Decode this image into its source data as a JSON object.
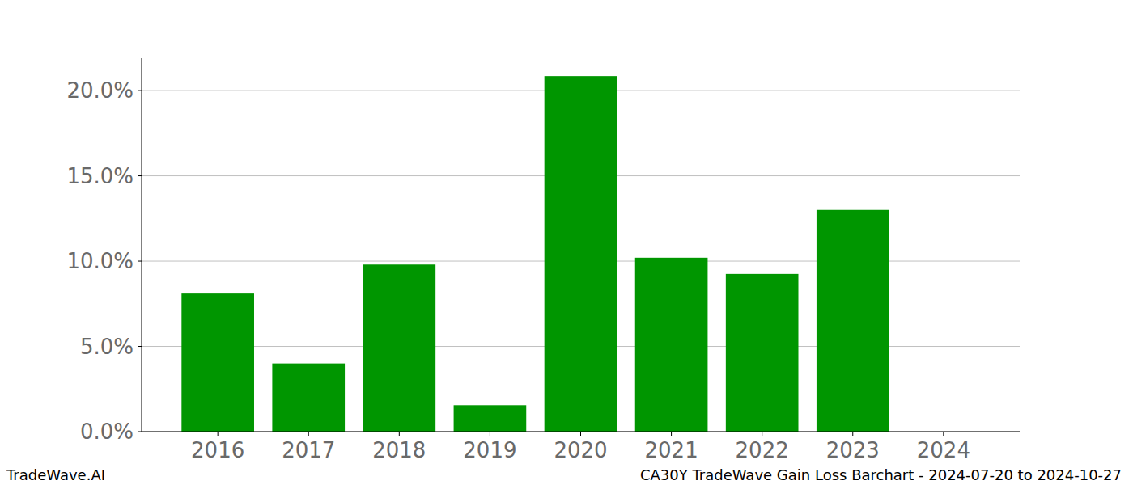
{
  "chart_data": {
    "type": "bar",
    "title": "CA30Y TradeWave Gain Loss Barchart - 2024-07-20 to 2024-10-27",
    "source": "TradeWave.AI",
    "categories": [
      "2016",
      "2017",
      "2018",
      "2019",
      "2020",
      "2021",
      "2022",
      "2023",
      "2024"
    ],
    "values": [
      8.1,
      4.0,
      9.8,
      1.55,
      20.85,
      10.2,
      9.25,
      13.0,
      0
    ],
    "color": "#009600",
    "ylim": [
      0,
      21.9
    ],
    "yticks": [
      {
        "value": 0,
        "label": "0.0%"
      },
      {
        "value": 5,
        "label": "5.0%"
      },
      {
        "value": 10,
        "label": "10.0%"
      },
      {
        "value": 15,
        "label": "15.0%"
      },
      {
        "value": 20,
        "label": "20.0%"
      }
    ],
    "grid": true
  }
}
